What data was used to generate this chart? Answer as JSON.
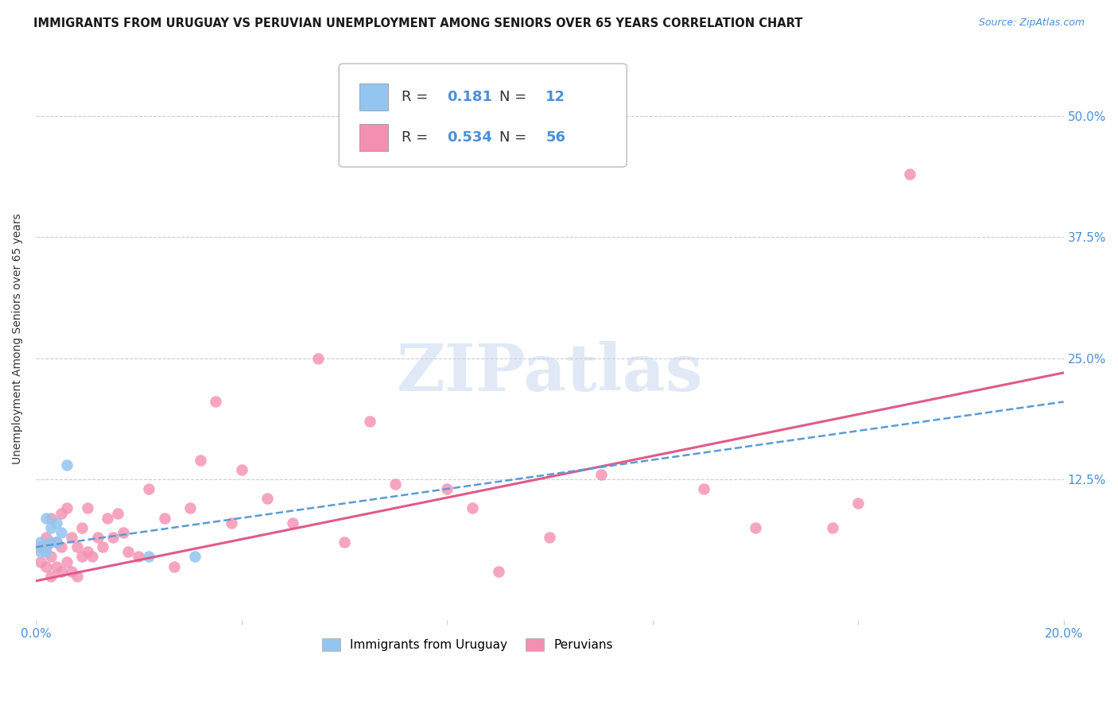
{
  "title": "IMMIGRANTS FROM URUGUAY VS PERUVIAN UNEMPLOYMENT AMONG SENIORS OVER 65 YEARS CORRELATION CHART",
  "source": "Source: ZipAtlas.com",
  "ylabel": "Unemployment Among Seniors over 65 years",
  "ytick_labels": [
    "50.0%",
    "37.5%",
    "25.0%",
    "12.5%"
  ],
  "ytick_values": [
    0.5,
    0.375,
    0.25,
    0.125
  ],
  "xlim": [
    0.0,
    0.2
  ],
  "ylim": [
    -0.02,
    0.56
  ],
  "background_color": "#ffffff",
  "watermark_text": "ZIPatlas",
  "legend_r_uruguay": "0.181",
  "legend_n_uruguay": "12",
  "legend_r_peruvians": "0.534",
  "legend_n_peruvians": "56",
  "color_uruguay": "#92c5f0",
  "color_peruvians": "#f48fb1",
  "trendline_uruguay_color": "#5b9bd5",
  "trendline_peruvians_color": "#e05a8a",
  "uruguay_x": [
    0.001,
    0.001,
    0.002,
    0.002,
    0.003,
    0.003,
    0.004,
    0.004,
    0.005,
    0.006,
    0.022,
    0.031
  ],
  "uruguay_y": [
    0.05,
    0.06,
    0.05,
    0.085,
    0.06,
    0.075,
    0.06,
    0.08,
    0.07,
    0.14,
    0.045,
    0.045
  ],
  "peruvians_x": [
    0.001,
    0.001,
    0.002,
    0.002,
    0.002,
    0.003,
    0.003,
    0.003,
    0.004,
    0.004,
    0.005,
    0.005,
    0.005,
    0.006,
    0.006,
    0.007,
    0.007,
    0.008,
    0.008,
    0.009,
    0.009,
    0.01,
    0.01,
    0.011,
    0.012,
    0.013,
    0.014,
    0.015,
    0.016,
    0.017,
    0.018,
    0.02,
    0.022,
    0.025,
    0.027,
    0.03,
    0.032,
    0.035,
    0.038,
    0.04,
    0.045,
    0.05,
    0.055,
    0.06,
    0.065,
    0.07,
    0.08,
    0.085,
    0.09,
    0.1,
    0.11,
    0.13,
    0.14,
    0.155,
    0.16,
    0.17
  ],
  "peruvians_y": [
    0.04,
    0.055,
    0.035,
    0.055,
    0.065,
    0.025,
    0.045,
    0.085,
    0.035,
    0.06,
    0.03,
    0.055,
    0.09,
    0.04,
    0.095,
    0.03,
    0.065,
    0.025,
    0.055,
    0.045,
    0.075,
    0.05,
    0.095,
    0.045,
    0.065,
    0.055,
    0.085,
    0.065,
    0.09,
    0.07,
    0.05,
    0.045,
    0.115,
    0.085,
    0.035,
    0.095,
    0.145,
    0.205,
    0.08,
    0.135,
    0.105,
    0.08,
    0.25,
    0.06,
    0.185,
    0.12,
    0.115,
    0.095,
    0.03,
    0.065,
    0.13,
    0.115,
    0.075,
    0.075,
    0.1,
    0.44
  ],
  "trendline_uru_x0": 0.0,
  "trendline_uru_x1": 0.2,
  "trendline_uru_y0": 0.055,
  "trendline_uru_y1": 0.205,
  "trendline_per_x0": 0.0,
  "trendline_per_x1": 0.2,
  "trendline_per_y0": 0.02,
  "trendline_per_y1": 0.235
}
